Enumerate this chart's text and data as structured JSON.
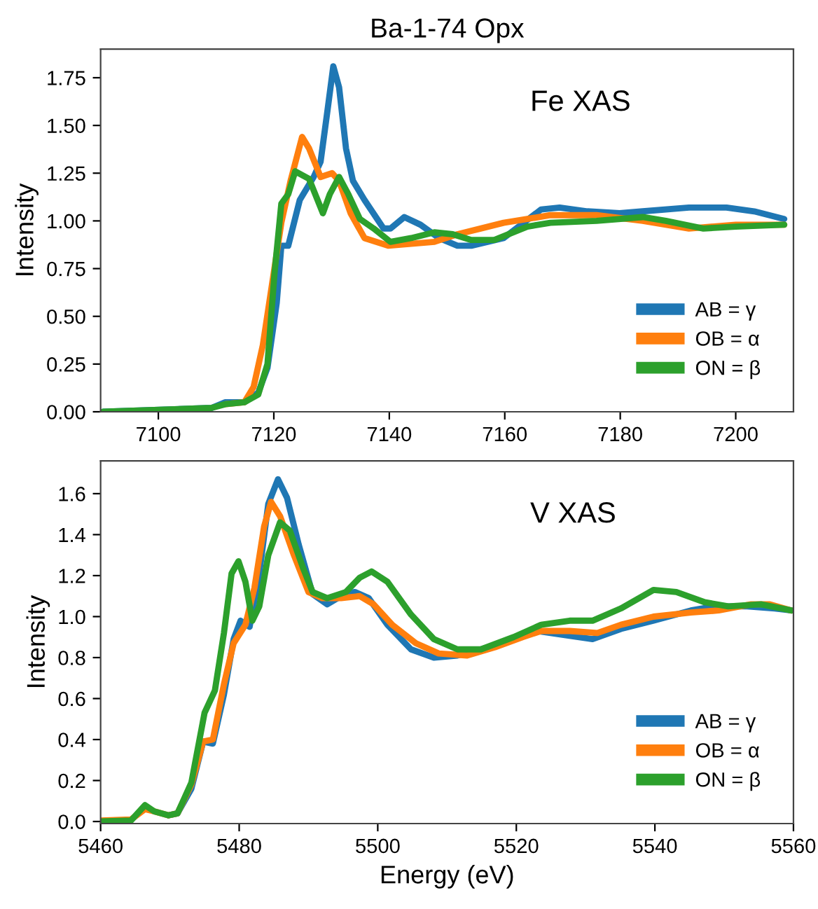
{
  "chart_data": [
    {
      "type": "line",
      "title": "Ba-1-74 Opx",
      "ylabel": "Intensity",
      "annotations": [
        "Fe XAS"
      ],
      "legend": "lower right",
      "grid": false,
      "xlim": [
        7090,
        7210
      ],
      "ylim": [
        0,
        1.9
      ],
      "xticks": [
        7100,
        7120,
        7140,
        7160,
        7180,
        7200
      ],
      "yticks": [
        {
          "value": 0,
          "label": "0.00"
        },
        {
          "value": 0.25,
          "label": "0.25"
        },
        {
          "value": 0.5,
          "label": "0.50"
        },
        {
          "value": 0.75,
          "label": "0.75"
        },
        {
          "value": 1.0,
          "label": "1.00"
        },
        {
          "value": 1.25,
          "label": "1.25"
        },
        {
          "value": 1.5,
          "label": "1.50"
        },
        {
          "value": 1.75,
          "label": "1.75"
        }
      ],
      "tick_labels": true,
      "series": [
        {
          "name": "AB = γ",
          "color": "#1f77b4",
          "x": [
            7090.4,
            7109.2,
            7111.6,
            7114.9,
            7117.3,
            7118.9,
            7120.5,
            7121.3,
            7122.5,
            7124.5,
            7126.9,
            7128.1,
            7129.3,
            7130.3,
            7131.3,
            7132.5,
            7133.7,
            7135.7,
            7139,
            7140.2,
            7142.6,
            7145.4,
            7148.6,
            7151.8,
            7154.2,
            7159.8,
            7166.3,
            7169.5,
            7174.3,
            7179.9,
            7183.9,
            7191.9,
            7198.4,
            7203.2,
            7208.4
          ],
          "values": [
            0,
            0.02,
            0.05,
            0.05,
            0.1,
            0.23,
            0.57,
            0.87,
            0.87,
            1.11,
            1.23,
            1.31,
            1.58,
            1.81,
            1.7,
            1.38,
            1.21,
            1.11,
            0.96,
            0.96,
            1.02,
            0.98,
            0.91,
            0.87,
            0.87,
            0.91,
            1.06,
            1.07,
            1.05,
            1.04,
            1.05,
            1.07,
            1.07,
            1.05,
            1.01
          ]
        },
        {
          "name": "OB = α",
          "color": "#ff7f0e",
          "x": [
            7111.6,
            7114.9,
            7116.5,
            7118.1,
            7119.7,
            7121.3,
            7122.9,
            7124.9,
            7126.1,
            7128.1,
            7130.1,
            7131.3,
            7133.3,
            7135.7,
            7139.8,
            7143.8,
            7147.8,
            7151.8,
            7155.8,
            7159.8,
            7163.9,
            7167.9,
            7175.9,
            7183.9,
            7191.9,
            7200,
            7208.4
          ],
          "values": [
            0.04,
            0.05,
            0.13,
            0.35,
            0.67,
            0.99,
            1.21,
            1.44,
            1.38,
            1.23,
            1.25,
            1.21,
            1.04,
            0.91,
            0.87,
            0.88,
            0.89,
            0.93,
            0.96,
            0.99,
            1.01,
            1.03,
            1.03,
            1.0,
            0.96,
            0.98,
            0.98
          ]
        },
        {
          "name": "ON = β",
          "color": "#2ca02c",
          "x": [
            7090.4,
            7109.2,
            7111.6,
            7114.9,
            7117.3,
            7118.9,
            7120.1,
            7121.3,
            7122.5,
            7123.7,
            7126.1,
            7128.5,
            7129.7,
            7131.3,
            7132.9,
            7134.9,
            7137.3,
            7140.2,
            7143.8,
            7147.8,
            7151,
            7154.2,
            7158.2,
            7163.9,
            7167.9,
            7175.9,
            7183.9,
            7187.9,
            7194.4,
            7200,
            7208.4
          ],
          "values": [
            0,
            0.02,
            0.04,
            0.05,
            0.09,
            0.25,
            0.72,
            1.09,
            1.14,
            1.26,
            1.22,
            1.04,
            1.14,
            1.23,
            1.14,
            1.01,
            0.96,
            0.89,
            0.91,
            0.94,
            0.93,
            0.9,
            0.9,
            0.97,
            0.99,
            1.0,
            1.02,
            1.0,
            0.96,
            0.97,
            0.98
          ]
        }
      ]
    },
    {
      "type": "line",
      "xlabel": "Energy (eV)",
      "ylabel": "Intensity",
      "annotations": [
        "V XAS"
      ],
      "legend": "lower right",
      "grid": false,
      "xlim": [
        5460,
        5560
      ],
      "ylim": [
        -0.01,
        1.76
      ],
      "xticks": [
        5460,
        5480,
        5500,
        5520,
        5540,
        5560
      ],
      "yticks": [
        {
          "value": 0,
          "label": "0.0"
        },
        {
          "value": 0.2,
          "label": "0.2"
        },
        {
          "value": 0.4,
          "label": "0.4"
        },
        {
          "value": 0.6,
          "label": "0.6"
        },
        {
          "value": 0.8,
          "label": "0.8"
        },
        {
          "value": 1.0,
          "label": "1.0"
        },
        {
          "value": 1.2,
          "label": "1.2"
        },
        {
          "value": 1.4,
          "label": "1.4"
        },
        {
          "value": 1.6,
          "label": "1.6"
        }
      ],
      "series": [
        {
          "name": "AB = γ",
          "color": "#1f77b4",
          "x": [
            5469.8,
            5471.1,
            5473.1,
            5474.8,
            5476.2,
            5477.8,
            5479.2,
            5480.2,
            5481.5,
            5482.9,
            5484.2,
            5485.6,
            5486.9,
            5488.6,
            5490.6,
            5492.7,
            5494.7,
            5496.7,
            5498.7,
            5501.4,
            5504.8,
            5508.1,
            5511.5,
            5514.9,
            5519.6,
            5522.9,
            5527,
            5531,
            5535.1,
            5539.8,
            5545.2,
            5548.6,
            5553.3,
            5557.3,
            5559.7
          ],
          "values": [
            0.03,
            0.04,
            0.16,
            0.39,
            0.38,
            0.62,
            0.89,
            0.98,
            0.95,
            1.21,
            1.55,
            1.67,
            1.58,
            1.35,
            1.11,
            1.06,
            1.1,
            1.12,
            1.09,
            0.96,
            0.84,
            0.8,
            0.81,
            0.84,
            0.89,
            0.93,
            0.91,
            0.89,
            0.94,
            0.98,
            1.03,
            1.05,
            1.05,
            1.04,
            1.03
          ]
        },
        {
          "name": "OB = α",
          "color": "#ff7f0e",
          "x": [
            5460,
            5464.4,
            5466.4,
            5467.7,
            5469.8,
            5471.1,
            5473.1,
            5474.8,
            5476.2,
            5477.8,
            5479.2,
            5480.9,
            5482.2,
            5483.6,
            5484.6,
            5485.9,
            5487.9,
            5490,
            5492,
            5494.7,
            5497.4,
            5499.4,
            5502.1,
            5505.5,
            5508.8,
            5512.9,
            5516.9,
            5520.9,
            5523.6,
            5527.7,
            5531.7,
            5535.1,
            5539.8,
            5545.2,
            5549.2,
            5553.9,
            5556.6,
            5559.7
          ],
          "values": [
            0.005,
            0.01,
            0.06,
            0.05,
            0.03,
            0.04,
            0.18,
            0.39,
            0.4,
            0.67,
            0.87,
            0.96,
            1.14,
            1.44,
            1.56,
            1.49,
            1.3,
            1.12,
            1.09,
            1.09,
            1.1,
            1.06,
            0.96,
            0.87,
            0.82,
            0.81,
            0.85,
            0.9,
            0.93,
            0.93,
            0.92,
            0.96,
            1.0,
            1.02,
            1.03,
            1.06,
            1.06,
            1.03
          ]
        },
        {
          "name": "ON = β",
          "color": "#2ca02c",
          "x": [
            5460,
            5464.4,
            5466.4,
            5467.7,
            5469.8,
            5471.1,
            5473.1,
            5475,
            5476.5,
            5477.8,
            5478.9,
            5479.9,
            5480.9,
            5481.9,
            5482.9,
            5484.2,
            5485.9,
            5487.3,
            5489.3,
            5490.6,
            5492.7,
            5495.4,
            5497.4,
            5499.1,
            5501.4,
            5504.8,
            5508.1,
            5511.5,
            5514.9,
            5519.6,
            5523.6,
            5527.7,
            5531,
            5535.1,
            5539.8,
            5543.1,
            5547.2,
            5550.6,
            5555.3,
            5559.7
          ],
          "values": [
            0,
            0.005,
            0.08,
            0.05,
            0.03,
            0.04,
            0.19,
            0.53,
            0.64,
            0.92,
            1.21,
            1.27,
            1.17,
            0.98,
            1.05,
            1.3,
            1.46,
            1.42,
            1.23,
            1.12,
            1.09,
            1.12,
            1.19,
            1.22,
            1.17,
            1.01,
            0.89,
            0.84,
            0.84,
            0.9,
            0.96,
            0.98,
            0.98,
            1.04,
            1.13,
            1.12,
            1.07,
            1.05,
            1.06,
            1.03
          ]
        }
      ]
    }
  ]
}
